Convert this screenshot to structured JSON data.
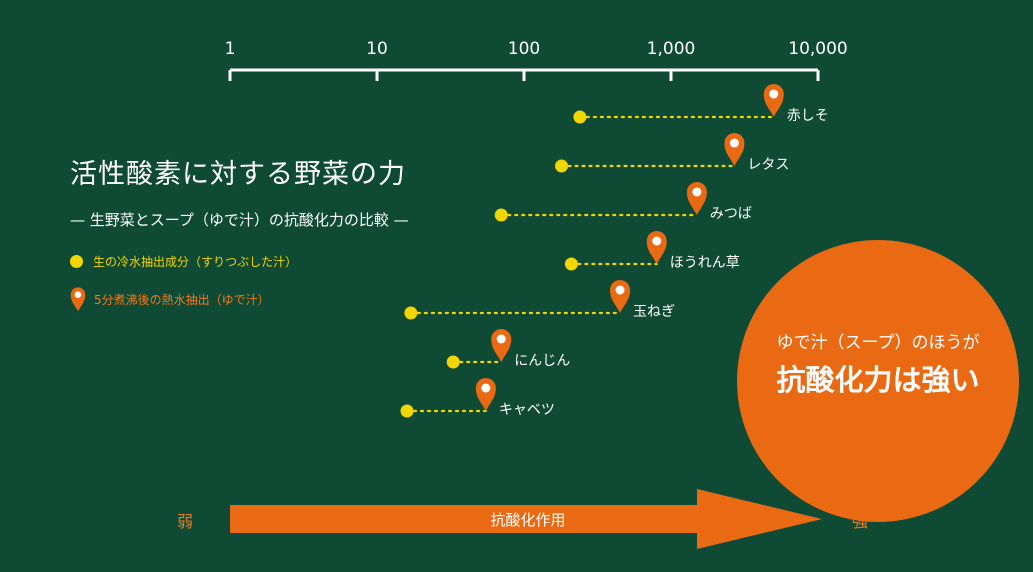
{
  "chart_data": {
    "type": "scatter",
    "title": "活性酸素に対する野菜の力",
    "subtitle": "— 生野菜とスープ（ゆで汁）の抗酸化力の比較 —",
    "x_scale": "log",
    "xlim": [
      1,
      10000
    ],
    "x_ticks": [
      {
        "value": 1,
        "label": "1"
      },
      {
        "value": 10,
        "label": "10"
      },
      {
        "value": 100,
        "label": "100"
      },
      {
        "value": 1000,
        "label": "1,000"
      },
      {
        "value": 10000,
        "label": "10,000"
      }
    ],
    "legend": {
      "raw_label": "生の冷水抽出成分（すりつぶした汁）",
      "boiled_label": "5分煮沸後の熱水抽出（ゆで汁）",
      "placement": "left"
    },
    "series_colors": {
      "raw": "#f2d600",
      "boiled": "#ea6a13"
    },
    "vegetables": [
      {
        "name": "赤しそ",
        "raw": 240,
        "boiled": 5000
      },
      {
        "name": "レタス",
        "raw": 180,
        "boiled": 2700
      },
      {
        "name": "みつば",
        "raw": 70,
        "boiled": 1500
      },
      {
        "name": "ほうれん草",
        "raw": 210,
        "boiled": 800
      },
      {
        "name": "玉ねぎ",
        "raw": 17,
        "boiled": 450
      },
      {
        "name": "にんじん",
        "raw": 33,
        "boiled": 70
      },
      {
        "name": "キャベツ",
        "raw": 16,
        "boiled": 55
      }
    ],
    "arrow_label": "抗酸化作用",
    "weak_label": "弱",
    "strong_label": "強",
    "callout": {
      "line1": "ゆで汁（スープ）のほうが",
      "line2": "抗酸化力は強い"
    }
  }
}
